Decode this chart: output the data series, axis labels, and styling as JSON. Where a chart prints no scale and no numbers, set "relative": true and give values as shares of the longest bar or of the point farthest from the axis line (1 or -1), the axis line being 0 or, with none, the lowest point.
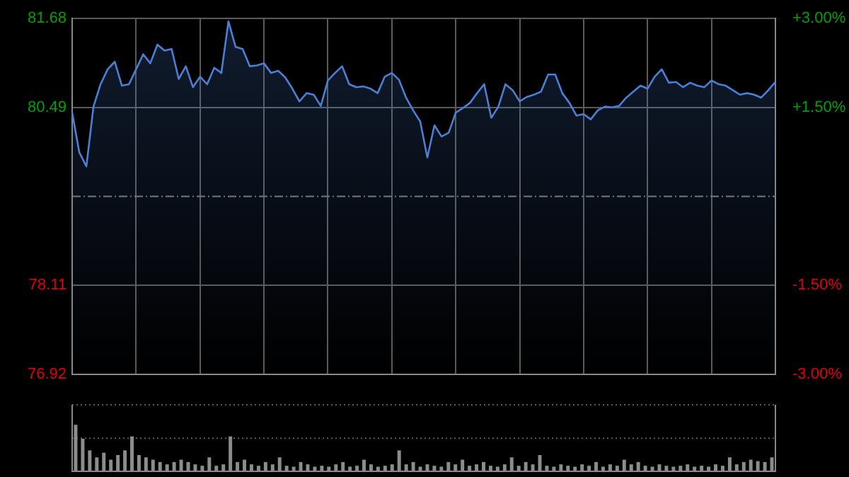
{
  "chart_data": [
    {
      "type": "area",
      "categories": [
        null,
        null,
        null,
        null,
        null,
        null,
        null,
        null,
        null,
        null,
        null,
        null,
        null,
        null,
        null,
        null,
        null,
        null,
        null,
        null,
        null,
        null,
        null,
        null,
        null,
        null,
        null,
        null,
        null,
        null,
        null,
        null,
        null,
        null,
        null,
        null,
        null,
        null,
        null,
        null,
        null,
        null,
        null,
        null,
        null,
        null,
        null,
        null,
        null,
        null,
        null,
        null,
        null,
        null,
        null,
        null,
        null,
        null,
        null,
        null,
        null,
        null,
        null,
        null,
        null,
        null,
        null,
        null,
        null,
        null,
        null,
        null,
        null,
        null,
        null,
        null,
        null,
        null,
        null,
        null,
        null,
        null,
        null,
        null,
        null,
        null,
        null,
        null,
        null,
        null,
        null,
        null,
        null,
        null,
        null,
        null,
        null,
        null,
        null,
        null
      ],
      "series": [
        {
          "color": "#4a7fd4",
          "values": [
            80.42,
            79.89,
            79.7,
            80.5,
            80.8,
            81.0,
            81.1,
            80.78,
            80.8,
            81.0,
            81.2,
            81.08,
            81.33,
            81.25,
            81.27,
            80.87,
            81.04,
            80.76,
            80.9,
            80.8,
            81.02,
            80.95,
            81.64,
            81.3,
            81.27,
            81.04,
            81.05,
            81.08,
            80.95,
            80.98,
            80.89,
            80.74,
            80.57,
            80.68,
            80.66,
            80.51,
            80.85,
            80.95,
            81.04,
            80.8,
            80.76,
            80.77,
            80.74,
            80.68,
            80.9,
            80.95,
            80.86,
            80.62,
            80.45,
            80.3,
            79.82,
            80.25,
            80.1,
            80.15,
            80.42,
            80.48,
            80.55,
            80.68,
            80.8,
            80.35,
            80.5,
            80.8,
            80.72,
            80.57,
            80.63,
            80.66,
            80.7,
            80.93,
            80.93,
            80.68,
            80.55,
            80.38,
            80.4,
            80.33,
            80.45,
            80.5,
            80.49,
            80.51,
            80.62,
            80.7,
            80.78,
            80.74,
            80.9,
            81.0,
            80.82,
            80.83,
            80.76,
            80.82,
            80.78,
            80.76,
            80.85,
            80.8,
            80.78,
            80.72,
            80.66,
            80.68,
            80.66,
            80.62,
            80.72,
            80.83
          ]
        }
      ],
      "ylim": [
        76.92,
        81.68
      ],
      "yticks": [
        76.92,
        78.11,
        80.49,
        81.68
      ],
      "y2lim": [
        -3,
        3
      ],
      "y2ticks": [
        {
          "value": -3,
          "label": "-3.00%"
        },
        {
          "value": -1.5,
          "label": "-1.50%"
        },
        {
          "value": 1.5,
          "label": "+1.50%"
        },
        {
          "value": 3,
          "label": "+3.00%"
        }
      ],
      "ref_lines": [
        {
          "axis": "y",
          "value": 79.3,
          "line_style": "dashed"
        }
      ],
      "grid": true
    },
    {
      "type": "bar",
      "relative": true,
      "color": "#8c8c8c",
      "grid": true,
      "ref_lines": [
        {
          "axis": "y",
          "value": 0.71,
          "line_style": "dotted"
        }
      ],
      "categories": [
        null,
        null,
        null,
        null,
        null,
        null,
        null,
        null,
        null,
        null,
        null,
        null,
        null,
        null,
        null,
        null,
        null,
        null,
        null,
        null,
        null,
        null,
        null,
        null,
        null,
        null,
        null,
        null,
        null,
        null,
        null,
        null,
        null,
        null,
        null,
        null,
        null,
        null,
        null,
        null,
        null,
        null,
        null,
        null,
        null,
        null,
        null,
        null,
        null,
        null,
        null,
        null,
        null,
        null,
        null,
        null,
        null,
        null,
        null,
        null,
        null,
        null,
        null,
        null,
        null,
        null,
        null,
        null,
        null,
        null,
        null,
        null,
        null,
        null,
        null,
        null,
        null,
        null,
        null,
        null,
        null,
        null,
        null,
        null,
        null,
        null,
        null,
        null,
        null,
        null,
        null,
        null,
        null,
        null,
        null,
        null,
        null,
        null,
        null,
        null
      ],
      "values": [
        1,
        0.7,
        0.45,
        0.3,
        0.4,
        0.25,
        0.35,
        0.45,
        0.75,
        0.35,
        0.3,
        0.25,
        0.2,
        0.15,
        0.2,
        0.25,
        0.2,
        0.15,
        0.12,
        0.3,
        0.12,
        0.15,
        0.75,
        0.2,
        0.25,
        0.15,
        0.12,
        0.2,
        0.15,
        0.3,
        0.12,
        0.1,
        0.2,
        0.15,
        0.1,
        0.12,
        0.1,
        0.15,
        0.2,
        0.1,
        0.12,
        0.25,
        0.15,
        0.1,
        0.12,
        0.15,
        0.45,
        0.15,
        0.2,
        0.1,
        0.15,
        0.12,
        0.1,
        0.2,
        0.15,
        0.25,
        0.12,
        0.15,
        0.2,
        0.12,
        0.1,
        0.15,
        0.3,
        0.12,
        0.2,
        0.15,
        0.35,
        0.12,
        0.1,
        0.15,
        0.12,
        0.1,
        0.15,
        0.12,
        0.2,
        0.1,
        0.15,
        0.12,
        0.25,
        0.15,
        0.2,
        0.12,
        0.1,
        0.15,
        0.12,
        0.1,
        0.12,
        0.15,
        0.1,
        0.12,
        0.1,
        0.15,
        0.12,
        0.3,
        0.15,
        0.2,
        0.25,
        0.22,
        0.2,
        0.3
      ]
    }
  ]
}
